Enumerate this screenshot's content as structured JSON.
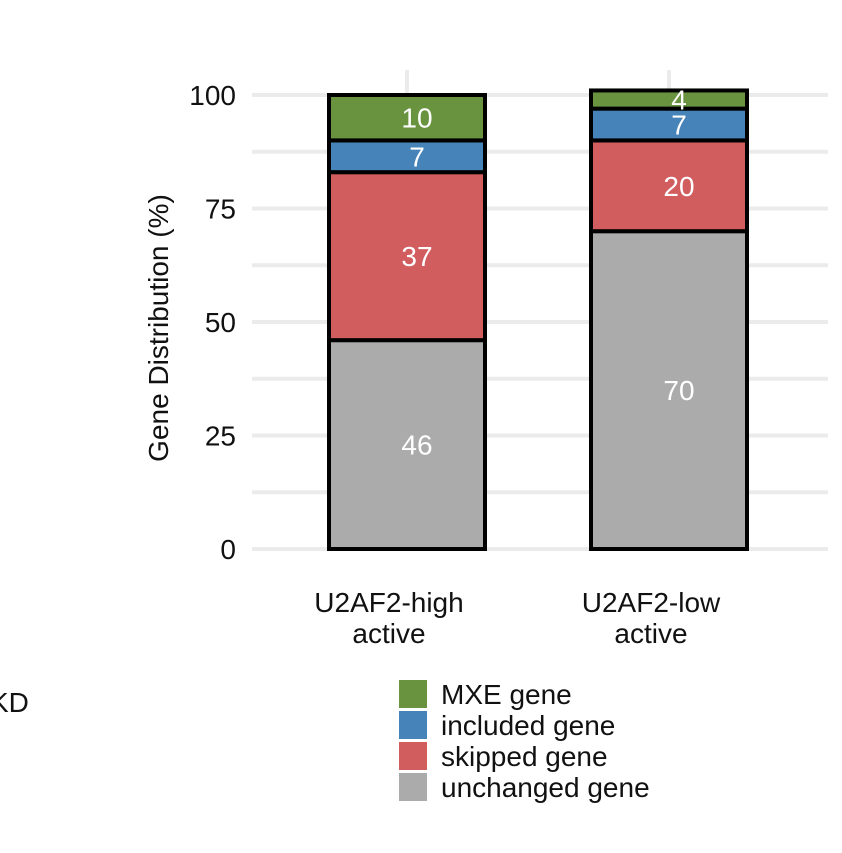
{
  "chart_data": {
    "type": "bar",
    "stacked": true,
    "categories": [
      [
        "U2AF2-high",
        "active"
      ],
      [
        "U2AF2-low",
        "active"
      ]
    ],
    "series": [
      {
        "name": "unchanged gene",
        "values": [
          46,
          70
        ],
        "color": "#ababab"
      },
      {
        "name": "skipped gene",
        "values": [
          37,
          20
        ],
        "color": "#d15d5e"
      },
      {
        "name": "included gene",
        "values": [
          7,
          7
        ],
        "color": "#4683b8"
      },
      {
        "name": "MXE gene",
        "values": [
          10,
          4
        ],
        "color": "#6a9340"
      }
    ],
    "ylabel": "Gene Distribution (%)",
    "ylim": [
      0,
      100
    ],
    "yticks": [
      0,
      25,
      50,
      75,
      100
    ],
    "grid": true,
    "legend": "bottom",
    "legend_order": [
      "MXE gene",
      "included gene",
      "skipped gene",
      "unchanged gene"
    ]
  },
  "clipped_text": [
    "KD",
    "D"
  ]
}
